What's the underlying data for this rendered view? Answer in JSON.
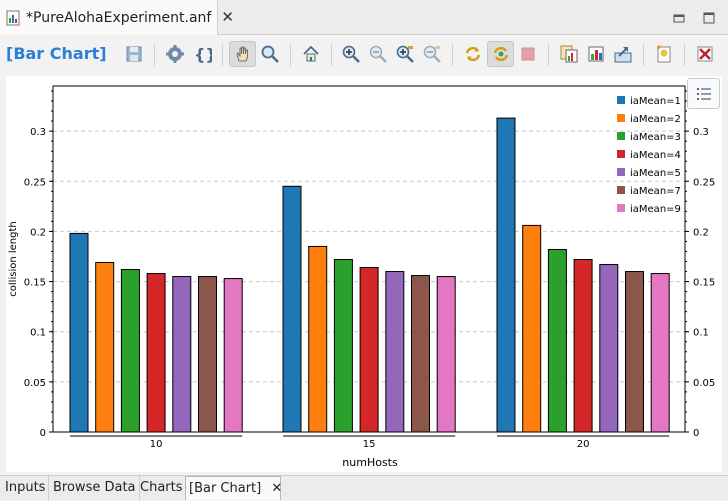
{
  "editor_tab": {
    "title": "*PureAlohaExperiment.anf"
  },
  "toolbar": {
    "editor_title": "[Bar Chart]",
    "icons": [
      "save-icon",
      "gear-icon",
      "braces-icon",
      "hand-pan-icon",
      "zoom-icon",
      "home-icon",
      "zoom-in-icon",
      "zoom-out-icon",
      "zoom-in-fit-icon",
      "zoom-out-fit-icon",
      "refresh-icon",
      "auto-refresh-icon",
      "stop-icon",
      "copy-chart-icon",
      "export-chart-icon",
      "export-data-icon",
      "new-chart-icon",
      "close-chart-icon"
    ]
  },
  "bottom_tabs": [
    {
      "label": "Inputs"
    },
    {
      "label": "Browse Data"
    },
    {
      "label": "Charts"
    },
    {
      "label": "[Bar Chart]"
    }
  ],
  "colors": {
    "accent": "#2a7fd6",
    "series": [
      "#1f77b4",
      "#ff7f0e",
      "#2ca02c",
      "#d62728",
      "#9467bd",
      "#8c564b",
      "#e377c2"
    ]
  },
  "chart_data": {
    "type": "bar",
    "xlabel": "numHosts",
    "ylabel": "collision length",
    "categories": [
      "10",
      "15",
      "20"
    ],
    "ylim": [
      0,
      0.345
    ],
    "yticks": [
      "0",
      "0.05",
      "0.1",
      "0.15",
      "0.2",
      "0.25",
      "0.3"
    ],
    "grid": true,
    "legend_position": "top-right",
    "series": [
      {
        "name": "iaMean=1",
        "values": [
          0.198,
          0.245,
          0.313
        ]
      },
      {
        "name": "iaMean=2",
        "values": [
          0.169,
          0.185,
          0.206
        ]
      },
      {
        "name": "iaMean=3",
        "values": [
          0.162,
          0.172,
          0.182
        ]
      },
      {
        "name": "iaMean=4",
        "values": [
          0.158,
          0.164,
          0.172
        ]
      },
      {
        "name": "iaMean=5",
        "values": [
          0.155,
          0.16,
          0.167
        ]
      },
      {
        "name": "iaMean=7",
        "values": [
          0.155,
          0.156,
          0.16
        ]
      },
      {
        "name": "iaMean=9",
        "values": [
          0.153,
          0.155,
          0.158
        ]
      }
    ]
  }
}
